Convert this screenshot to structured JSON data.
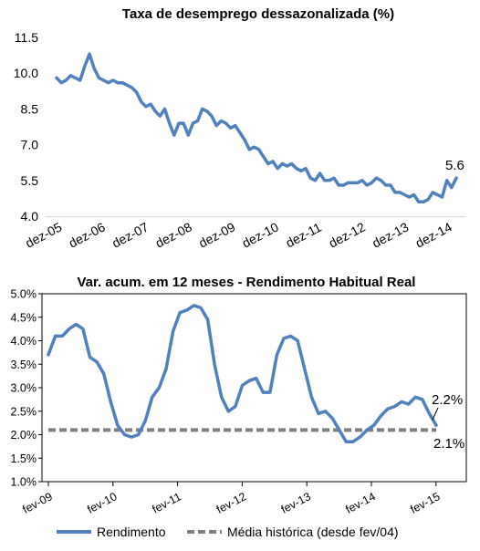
{
  "chart_data": [
    {
      "type": "line",
      "title": "Taxa de desemprego dessazonalizada (%)",
      "xlabel": "",
      "ylabel": "",
      "ylim": [
        4.0,
        11.5
      ],
      "yticks": [
        "4.0",
        "5.5",
        "7.0",
        "8.5",
        "10.0",
        "11.5"
      ],
      "xticks": [
        "dez-05",
        "dez-06",
        "dez-07",
        "dez-08",
        "dez-09",
        "dez-10",
        "dez-11",
        "dez-12",
        "dez-13",
        "dez-14"
      ],
      "series": [
        {
          "color": "#4f81bd",
          "values": [
            9.8,
            9.6,
            9.7,
            9.9,
            9.8,
            9.7,
            10.3,
            10.8,
            10.2,
            9.8,
            9.7,
            9.6,
            9.7,
            9.6,
            9.6,
            9.5,
            9.4,
            9.2,
            8.8,
            8.6,
            8.7,
            8.4,
            8.2,
            8.5,
            7.9,
            7.4,
            7.9,
            7.9,
            7.4,
            7.9,
            8.0,
            8.5,
            8.4,
            8.2,
            7.8,
            8.0,
            7.9,
            7.7,
            7.8,
            7.5,
            7.2,
            6.8,
            6.9,
            6.8,
            6.5,
            6.2,
            6.3,
            6.0,
            6.2,
            6.1,
            6.2,
            6.0,
            5.9,
            6.0,
            5.6,
            5.5,
            5.8,
            5.5,
            5.5,
            5.6,
            5.3,
            5.3,
            5.4,
            5.4,
            5.4,
            5.5,
            5.3,
            5.4,
            5.6,
            5.5,
            5.3,
            5.3,
            5.0,
            5.0,
            4.9,
            4.8,
            4.9,
            4.6,
            4.6,
            4.7,
            5.0,
            4.9,
            4.8,
            5.5,
            5.2,
            5.6
          ]
        }
      ],
      "annotations": [
        {
          "text": "5.6"
        }
      ]
    },
    {
      "type": "line",
      "title": "Var. acum. em 12 meses - Rendimento Habitual Real",
      "xlabel": "",
      "ylabel": "",
      "ylim": [
        1.0,
        5.0
      ],
      "yticks": [
        "1.0%",
        "1.5%",
        "2.0%",
        "2.5%",
        "3.0%",
        "3.5%",
        "4.0%",
        "4.5%",
        "5.0%"
      ],
      "xticks": [
        "fev-09",
        "fev-10",
        "fev-11",
        "fev-12",
        "fev-13",
        "fev-14",
        "fev-15"
      ],
      "legend": "bottom",
      "series": [
        {
          "name": "Rendimento",
          "color": "#4f81bd",
          "values": [
            3.7,
            4.1,
            4.1,
            4.25,
            4.35,
            4.25,
            3.65,
            3.55,
            3.3,
            2.7,
            2.2,
            2.0,
            1.95,
            2.0,
            2.3,
            2.8,
            3.0,
            3.4,
            4.2,
            4.6,
            4.65,
            4.75,
            4.7,
            4.45,
            3.5,
            2.8,
            2.5,
            2.6,
            3.05,
            3.15,
            3.2,
            2.9,
            2.9,
            3.7,
            4.05,
            4.1,
            4.0,
            3.4,
            2.8,
            2.45,
            2.5,
            2.35,
            2.1,
            1.85,
            1.85,
            1.95,
            2.1,
            2.2,
            2.4,
            2.55,
            2.6,
            2.7,
            2.65,
            2.8,
            2.75,
            2.45,
            2.2
          ]
        },
        {
          "name": "Média histórica (desde fev/04)",
          "color": "#7f7f7f",
          "dash": true,
          "values": [
            2.1,
            2.1
          ]
        }
      ],
      "annotations": [
        {
          "text": "2.2%"
        },
        {
          "text": "2.1%"
        }
      ]
    }
  ]
}
